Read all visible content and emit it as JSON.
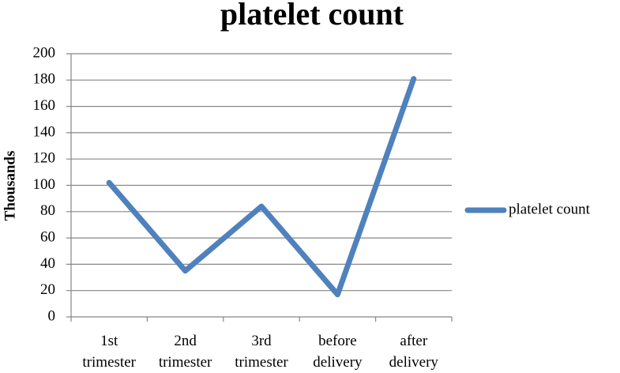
{
  "chart_data": {
    "type": "line",
    "title": "platelet count",
    "y_label": "Thousands",
    "categories": [
      "1st trimester",
      "2nd trimester",
      "3rd trimester",
      "before delivery",
      "after delivery"
    ],
    "series": [
      {
        "name": "platelet count",
        "color": "#4f81bd",
        "values": [
          102,
          35,
          84,
          17,
          181
        ]
      }
    ],
    "ylim": [
      0,
      200
    ],
    "yticks": [
      0,
      20,
      40,
      60,
      80,
      100,
      120,
      140,
      160,
      180,
      200
    ],
    "grid": true,
    "legend": "right"
  }
}
